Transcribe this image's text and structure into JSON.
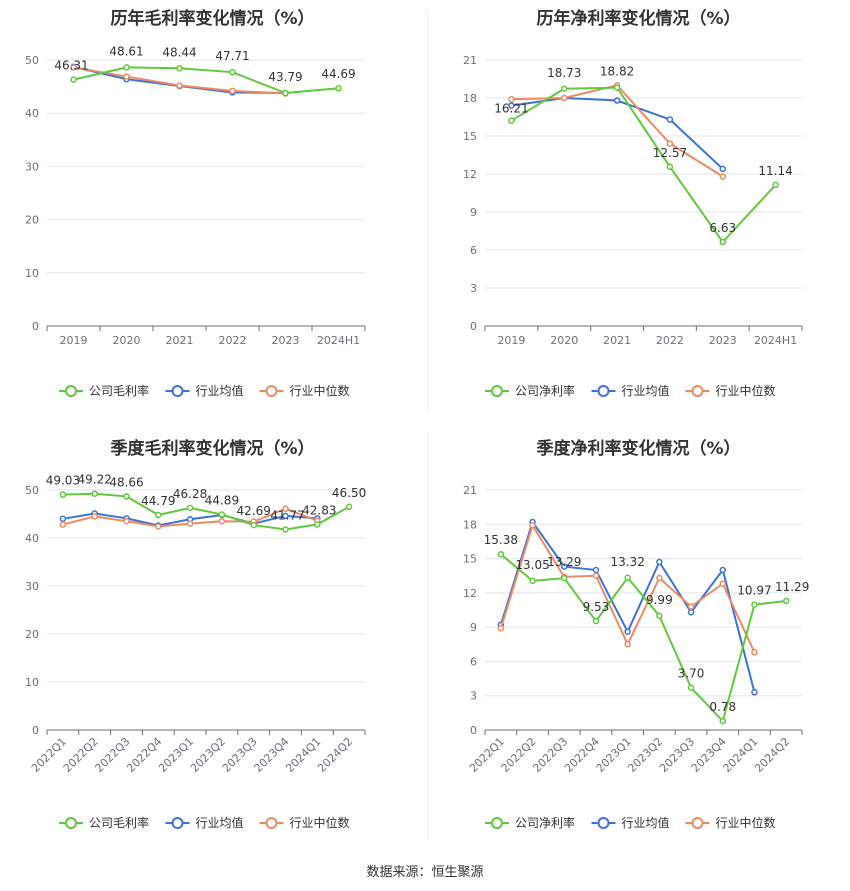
{
  "source_text": "数据来源：恒生聚源",
  "legend_colors": {
    "company": "#5fcb3a",
    "avg": "#3b74d9",
    "median": "#ee8a62"
  },
  "chart_data": [
    {
      "id": "annual-gross",
      "type": "line",
      "title": "历年毛利率变化情况（%）",
      "categories": [
        "2019",
        "2020",
        "2021",
        "2022",
        "2023",
        "2024H1"
      ],
      "ylim": [
        0,
        50
      ],
      "yticks": [
        0,
        10,
        20,
        30,
        40,
        50
      ],
      "grid": true,
      "legend_position": "bottom",
      "series": [
        {
          "name": "公司毛利率",
          "color": "#5fcb3a",
          "labels": true,
          "values": [
            46.31,
            48.61,
            48.44,
            47.71,
            43.79,
            44.69
          ]
        },
        {
          "name": "行业均值",
          "color": "#3b74d9",
          "labels": false,
          "values": [
            48.7,
            46.4,
            45.1,
            43.9,
            43.8,
            null
          ]
        },
        {
          "name": "行业中位数",
          "color": "#ee8a62",
          "labels": false,
          "values": [
            48.6,
            46.9,
            45.2,
            44.2,
            43.7,
            null
          ]
        }
      ]
    },
    {
      "id": "annual-net",
      "type": "line",
      "title": "历年净利率变化情况（%）",
      "categories": [
        "2019",
        "2020",
        "2021",
        "2022",
        "2023",
        "2024H1"
      ],
      "ylim": [
        0,
        21
      ],
      "yticks": [
        0,
        3,
        6,
        9,
        12,
        15,
        18,
        21
      ],
      "grid": true,
      "legend_position": "bottom",
      "series": [
        {
          "name": "公司净利率",
          "color": "#5fcb3a",
          "labels": true,
          "values": [
            16.21,
            18.73,
            18.82,
            12.57,
            6.63,
            11.14
          ]
        },
        {
          "name": "行业均值",
          "color": "#3b74d9",
          "labels": false,
          "values": [
            17.4,
            18.0,
            17.8,
            16.3,
            12.4,
            null
          ]
        },
        {
          "name": "行业中位数",
          "color": "#ee8a62",
          "labels": false,
          "values": [
            17.9,
            18.0,
            19.0,
            14.4,
            11.8,
            null
          ]
        }
      ]
    },
    {
      "id": "quarterly-gross",
      "type": "line",
      "title": "季度毛利率变化情况（%）",
      "categories": [
        "2022Q1",
        "2022Q2",
        "2022Q3",
        "2022Q4",
        "2023Q1",
        "2023Q2",
        "2023Q3",
        "2023Q4",
        "2024Q1",
        "2024Q2"
      ],
      "ylim": [
        0,
        50
      ],
      "yticks": [
        0,
        10,
        20,
        30,
        40,
        50
      ],
      "grid": true,
      "legend_position": "bottom",
      "series": [
        {
          "name": "公司毛利率",
          "color": "#5fcb3a",
          "labels": true,
          "values": [
            49.03,
            49.22,
            48.66,
            44.79,
            46.28,
            44.89,
            42.69,
            41.77,
            42.83,
            46.5
          ]
        },
        {
          "name": "行业均值",
          "color": "#3b74d9",
          "labels": false,
          "values": [
            44.0,
            45.1,
            44.1,
            42.6,
            43.9,
            44.8,
            43.0,
            44.6,
            44.1,
            null
          ]
        },
        {
          "name": "行业中位数",
          "color": "#ee8a62",
          "labels": false,
          "values": [
            42.8,
            44.5,
            43.5,
            42.4,
            43.0,
            43.5,
            43.4,
            46.1,
            43.6,
            null
          ]
        }
      ]
    },
    {
      "id": "quarterly-net",
      "type": "line",
      "title": "季度净利率变化情况（%）",
      "categories": [
        "2022Q1",
        "2022Q2",
        "2022Q3",
        "2022Q4",
        "2023Q1",
        "2023Q2",
        "2023Q3",
        "2023Q4",
        "2024Q1",
        "2024Q2"
      ],
      "ylim": [
        0,
        21
      ],
      "yticks": [
        0,
        3,
        6,
        9,
        12,
        15,
        18,
        21
      ],
      "grid": true,
      "legend_position": "bottom",
      "series": [
        {
          "name": "公司净利率",
          "color": "#5fcb3a",
          "labels": true,
          "values": [
            15.38,
            13.05,
            13.29,
            9.53,
            13.32,
            9.99,
            3.7,
            0.78,
            10.97,
            11.29
          ]
        },
        {
          "name": "行业均值",
          "color": "#3b74d9",
          "labels": false,
          "values": [
            9.2,
            18.2,
            14.3,
            14.0,
            8.6,
            14.7,
            10.3,
            14.0,
            3.3,
            null
          ]
        },
        {
          "name": "行业中位数",
          "color": "#ee8a62",
          "labels": false,
          "values": [
            8.9,
            17.9,
            13.4,
            13.5,
            7.5,
            13.3,
            10.8,
            12.8,
            6.8,
            null
          ]
        }
      ]
    }
  ]
}
